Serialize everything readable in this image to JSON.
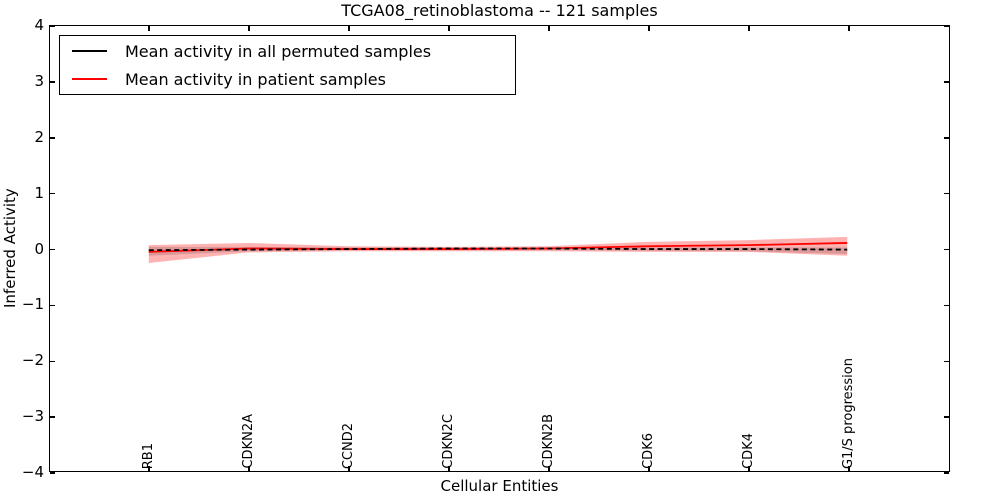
{
  "legend": {
    "items": [
      {
        "label": "Mean activity in all permuted samples",
        "color": "#000000"
      },
      {
        "label": "Mean activity in patient samples",
        "color": "#ff0000"
      }
    ]
  },
  "chart_data": {
    "type": "line",
    "title": "TCGA08_retinoblastoma -- 121 samples",
    "xlabel": "Cellular Entities",
    "ylabel": "Inferred Activity",
    "categories": [
      "RB1",
      "CDKN2A",
      "CCND2",
      "CDKN2C",
      "CDKN2B",
      "CDK6",
      "CDK4",
      "G1/S progression"
    ],
    "ylim": [
      -4,
      4
    ],
    "yticks": [
      4,
      3,
      2,
      1,
      0,
      -1,
      -2,
      -3,
      -4
    ],
    "xtick_rotation": 90,
    "grid": false,
    "legend_position": "upper left",
    "series": [
      {
        "name": "Mean activity in all permuted samples",
        "color": "#000000",
        "style": "dashed",
        "values": [
          -0.03,
          -0.02,
          -0.01,
          0.0,
          0.0,
          -0.01,
          -0.01,
          -0.02
        ]
      },
      {
        "name": "Mean activity in patient samples",
        "color": "#ff0000",
        "style": "solid",
        "values": [
          -0.06,
          0.0,
          -0.01,
          -0.01,
          0.0,
          0.04,
          0.06,
          0.1
        ]
      }
    ],
    "bands": [
      {
        "name": "patient-samples-range",
        "fill": "rgba(255,0,0,0.30)",
        "upper": [
          0.06,
          0.1,
          0.04,
          0.03,
          0.04,
          0.12,
          0.15,
          0.21
        ],
        "lower": [
          -0.26,
          -0.07,
          -0.05,
          -0.05,
          -0.05,
          -0.06,
          -0.06,
          -0.13
        ]
      },
      {
        "name": "permuted-samples-range",
        "fill": "rgba(0,0,0,0.14)",
        "upper": [
          0.03,
          0.03,
          0.02,
          0.02,
          0.02,
          0.02,
          0.02,
          0.02
        ],
        "lower": [
          -0.13,
          -0.05,
          -0.03,
          -0.03,
          -0.03,
          -0.04,
          -0.05,
          -0.1
        ]
      }
    ]
  }
}
